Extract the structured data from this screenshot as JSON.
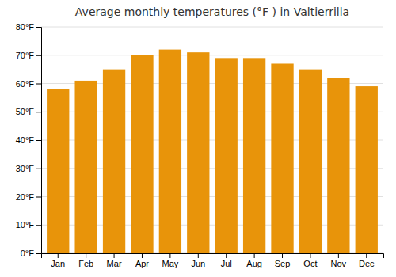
{
  "chart_data": {
    "type": "bar",
    "title": "Average monthly temperatures (°F ) in Valtierrilla",
    "categories": [
      "Jan",
      "Feb",
      "Mar",
      "Apr",
      "May",
      "Jun",
      "Jul",
      "Aug",
      "Sep",
      "Oct",
      "Nov",
      "Dec"
    ],
    "values": [
      58,
      61,
      65,
      70,
      72,
      71,
      69,
      69,
      67,
      65,
      62,
      59
    ],
    "color": "#E8940A",
    "ylim": [
      0,
      80
    ],
    "yticks": [
      {
        "value": 0,
        "label": "0°F"
      },
      {
        "value": 10,
        "label": "10°F"
      },
      {
        "value": 20,
        "label": "20°F"
      },
      {
        "value": 30,
        "label": "30°F"
      },
      {
        "value": 40,
        "label": "40°F"
      },
      {
        "value": 50,
        "label": "50°F"
      },
      {
        "value": 60,
        "label": "60°F"
      },
      {
        "value": 70,
        "label": "70°F"
      },
      {
        "value": 80,
        "label": "80°F"
      }
    ],
    "grid": true
  }
}
